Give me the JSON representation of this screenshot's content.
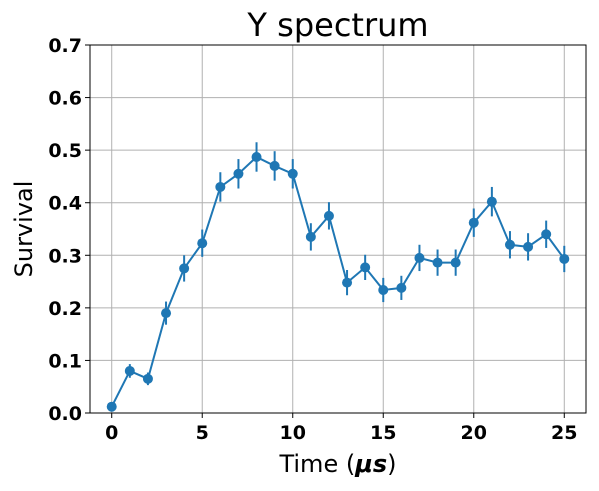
{
  "chart_data": {
    "type": "line",
    "title": "Y spectrum",
    "xlabel_prefix": "Time (",
    "xlabel_unit": "μs",
    "xlabel_suffix": ")",
    "ylabel": "Survival",
    "xlim": [
      -1.2,
      26.2
    ],
    "ylim": [
      0.0,
      0.7
    ],
    "x_ticks": [
      0,
      5,
      10,
      15,
      20,
      25
    ],
    "x_tick_labels": [
      "0",
      "5",
      "10",
      "15",
      "20",
      "25"
    ],
    "y_ticks": [
      0.0,
      0.1,
      0.2,
      0.3,
      0.4,
      0.5,
      0.6,
      0.7
    ],
    "y_tick_labels": [
      "0.0",
      "0.1",
      "0.2",
      "0.3",
      "0.4",
      "0.5",
      "0.6",
      "0.7"
    ],
    "grid": true,
    "legend": false,
    "series": [
      {
        "color": "#1f77b4",
        "marker": "circle",
        "x": [
          0,
          1,
          2,
          3,
          4,
          5,
          6,
          7,
          8,
          9,
          10,
          11,
          12,
          13,
          14,
          15,
          16,
          17,
          18,
          19,
          20,
          21,
          22,
          23,
          24,
          25
        ],
        "y": [
          0.012,
          0.08,
          0.065,
          0.19,
          0.275,
          0.323,
          0.43,
          0.455,
          0.487,
          0.47,
          0.455,
          0.335,
          0.375,
          0.248,
          0.277,
          0.234,
          0.238,
          0.295,
          0.286,
          0.286,
          0.362,
          0.402,
          0.32,
          0.316,
          0.34,
          0.293
        ],
        "yerr": [
          0.007,
          0.013,
          0.012,
          0.022,
          0.025,
          0.026,
          0.028,
          0.028,
          0.028,
          0.028,
          0.028,
          0.026,
          0.026,
          0.024,
          0.024,
          0.023,
          0.023,
          0.025,
          0.025,
          0.025,
          0.027,
          0.028,
          0.026,
          0.026,
          0.026,
          0.025
        ]
      }
    ]
  }
}
